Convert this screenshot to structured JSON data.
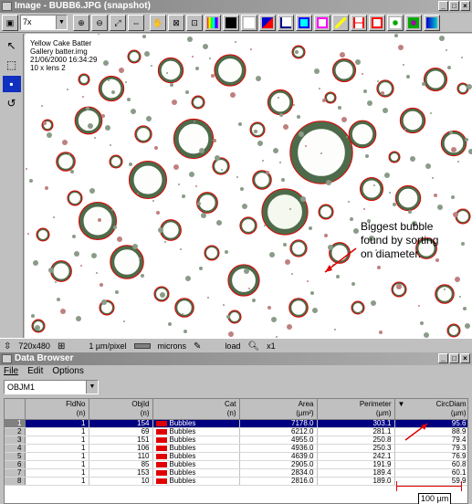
{
  "image_window": {
    "title": "Image - BUBB6.JPG (snapshot)",
    "zoom": "7x",
    "info_lines": [
      "Yellow Cake Batter",
      "Gallery batter.img",
      "21/06/2000 16:34:29",
      "10 x lens 2"
    ],
    "annotation": "Biggest bubble found by sorting on diameter.",
    "status": {
      "dimensions": "720x480",
      "pixel_scale": "1 µm/pixel",
      "units": "microns",
      "load_label": "load",
      "magnification": "x1"
    }
  },
  "data_browser": {
    "title": "Data Browser",
    "menu": [
      "File",
      "Edit",
      "Options"
    ],
    "object_selector": "OBJM1",
    "columns": [
      {
        "name": "FldNo",
        "unit": "(n)"
      },
      {
        "name": "ObjId",
        "unit": "(n)"
      },
      {
        "name": "Cat",
        "unit": "(n)"
      },
      {
        "name": "Area",
        "unit": "(µm²)"
      },
      {
        "name": "Perimeter",
        "unit": "(µm)"
      },
      {
        "name": "CircDiam",
        "unit": "(µm)"
      }
    ],
    "rows": [
      {
        "n": "1",
        "fld": "1",
        "obj": "154",
        "cat": "Bubbles",
        "area": "7178.0",
        "perim": "303.1",
        "circ": "95.6"
      },
      {
        "n": "2",
        "fld": "1",
        "obj": "69",
        "cat": "Bubbles",
        "area": "6212.0",
        "perim": "281.1",
        "circ": "88.9"
      },
      {
        "n": "3",
        "fld": "1",
        "obj": "151",
        "cat": "Bubbles",
        "area": "4955.0",
        "perim": "250.8",
        "circ": "79.4"
      },
      {
        "n": "4",
        "fld": "1",
        "obj": "106",
        "cat": "Bubbles",
        "area": "4936.0",
        "perim": "250.3",
        "circ": "79.3"
      },
      {
        "n": "5",
        "fld": "1",
        "obj": "110",
        "cat": "Bubbles",
        "area": "4639.0",
        "perim": "242.1",
        "circ": "76.9"
      },
      {
        "n": "6",
        "fld": "1",
        "obj": "85",
        "cat": "Bubbles",
        "area": "2905.0",
        "perim": "191.9",
        "circ": "60.8"
      },
      {
        "n": "7",
        "fld": "1",
        "obj": "153",
        "cat": "Bubbles",
        "area": "2834.0",
        "perim": "189.4",
        "circ": "60.1"
      },
      {
        "n": "8",
        "fld": "1",
        "obj": "10",
        "cat": "Bubbles",
        "area": "2816.0",
        "perim": "189.0",
        "circ": "59.9"
      }
    ],
    "scale_bar_label": "100 µm"
  },
  "colors": {
    "selection": "#000080",
    "bubble_outline": "#e00000",
    "category_swatch": "#e00000"
  }
}
